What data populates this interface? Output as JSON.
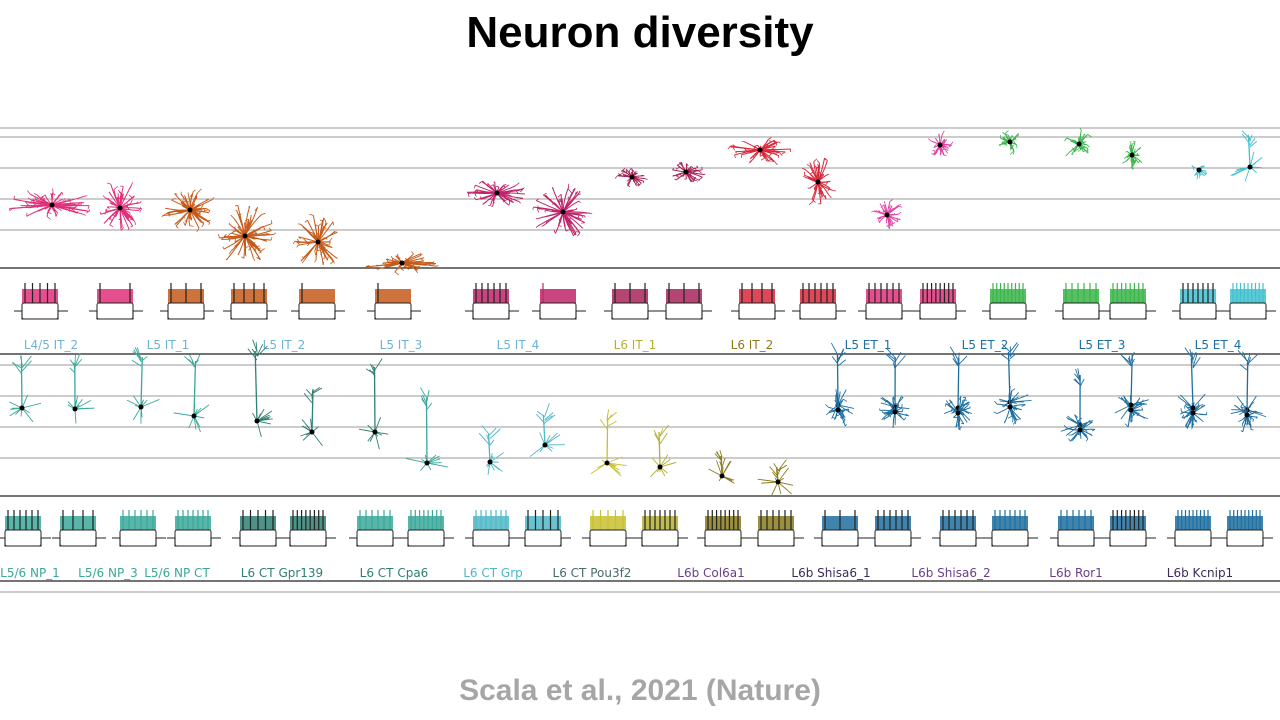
{
  "slide": {
    "title": "Neuron diversity",
    "citation": "Scala et al., 2021 (Nature)"
  },
  "figure": {
    "row1_labels": [
      {
        "text": "L4/5 IT_2",
        "color": "#6fb3d2"
      },
      {
        "text": "L5 IT_1",
        "color": "#6fb3d2"
      },
      {
        "text": "L5 IT_2",
        "color": "#6fb3d2"
      },
      {
        "text": "L5 IT_3",
        "color": "#6fb3d2"
      },
      {
        "text": "L5 IT_4",
        "color": "#6fb3d2"
      },
      {
        "text": "L6 IT_1",
        "color": "#b5b035"
      },
      {
        "text": "L6 IT_2",
        "color": "#8a7b1e"
      },
      {
        "text": "L5 ET_1",
        "color": "#1e6fa0"
      },
      {
        "text": "L5 ET_2",
        "color": "#1e6fa0"
      },
      {
        "text": "L5 ET_3",
        "color": "#1e6fa0"
      },
      {
        "text": "L5 ET_4",
        "color": "#1e6fa0"
      }
    ],
    "row2_labels": [
      {
        "text": "L5/6 NP_1",
        "color": "#3aa89a"
      },
      {
        "text": "L5/6 NP_3",
        "color": "#3aa89a"
      },
      {
        "text": "L5/6 NP CT",
        "color": "#3aa89a"
      },
      {
        "text": "L6 CT Gpr139",
        "color": "#2f7f73"
      },
      {
        "text": "L6 CT Cpa6",
        "color": "#2f7f73"
      },
      {
        "text": "L6 CT Grp",
        "color": "#4fb7c7"
      },
      {
        "text": "L6 CT Pou3f2",
        "color": "#4a6a6a"
      },
      {
        "text": "L6b Col6a1",
        "color": "#6a3f8a"
      },
      {
        "text": "L6b Shisa6_1",
        "color": "#3a2a5a"
      },
      {
        "text": "L6b Shisa6_2",
        "color": "#6a3f8a"
      },
      {
        "text": "L6b Ror1",
        "color": "#6a3f8a"
      },
      {
        "text": "L6b Kcnip1",
        "color": "#3a2a5a"
      }
    ]
  }
}
